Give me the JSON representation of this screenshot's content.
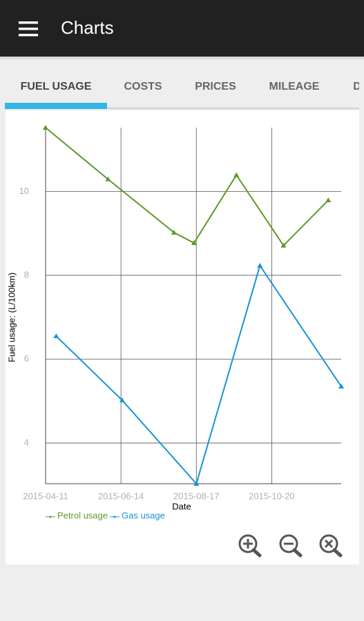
{
  "app_bar": {
    "title": "Charts"
  },
  "tabs": [
    "FUEL USAGE",
    "COSTS",
    "PRICES",
    "MILEAGE",
    "D"
  ],
  "chart_data": {
    "type": "line",
    "x_label": "Date",
    "y_label": "Fuel usage: (L/100km)",
    "xlim": [
      "2015-04-11",
      "2015-12-18"
    ],
    "xticks": [
      "2015-04-11",
      "2015-06-14",
      "2015-08-17",
      "2015-10-20"
    ],
    "ylim": [
      3.03,
      11.52
    ],
    "yticks": [
      4,
      6,
      8,
      10
    ],
    "grid": true,
    "series": [
      {
        "name": "Petrol usage",
        "color": "#5b9a2c",
        "x": [
          "2015-04-11",
          "2015-06-03",
          "2015-07-29",
          "2015-08-15",
          "2015-09-20",
          "2015-10-30",
          "2015-12-07"
        ],
        "values": [
          11.52,
          10.29,
          9.02,
          8.77,
          10.39,
          8.71,
          9.79
        ]
      },
      {
        "name": "Gas usage",
        "color": "#1793d3",
        "x": [
          "2015-04-20",
          "2015-06-15",
          "2015-08-17",
          "2015-10-10",
          "2015-12-18"
        ],
        "values": [
          6.55,
          5.02,
          3.03,
          8.23,
          5.35
        ]
      }
    ]
  }
}
